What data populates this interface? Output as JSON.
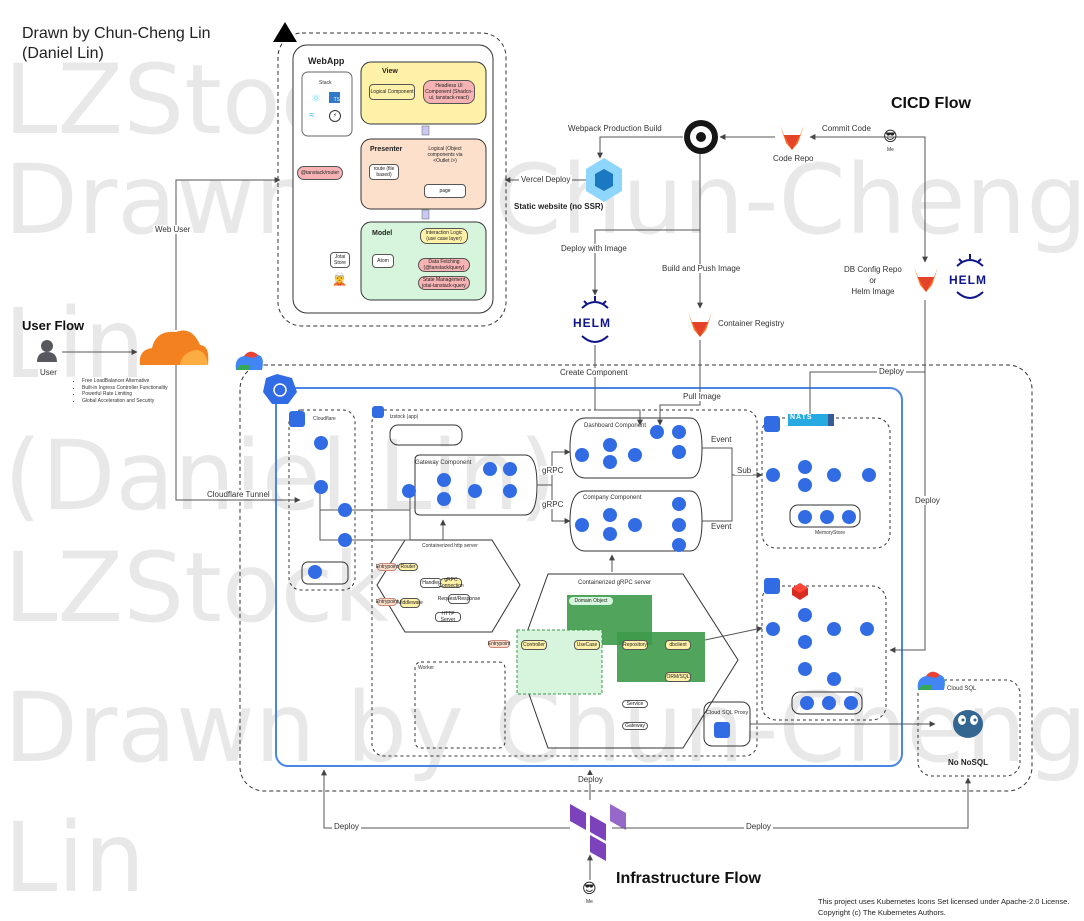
{
  "credit": {
    "line1": "Drawn by Chun-Cheng Lin",
    "line2": "(Daniel Lin)"
  },
  "watermark": {
    "lines": [
      "LZStock",
      "Drawn by Chun-Cheng",
      "Lin",
      "(Daniel Lin)",
      "LZStock",
      "Drawn by Chun-Cheng",
      "Lin"
    ]
  },
  "flows": {
    "user": "User Flow",
    "cicd": "CICD Flow",
    "infra": "Infrastructure Flow"
  },
  "user_flow": {
    "user_label": "User",
    "web_user": "Web User",
    "tunnel": "Cloudflare Tunnel",
    "features": [
      "Free LoadBalancer Alternative",
      "Built-in Ingress Controller Functionality",
      "Powerful Rate Limiting",
      "Global Acceleration and Security"
    ]
  },
  "webapp": {
    "title": "WebApp",
    "stack_label": "Stack",
    "ts_badge": "TS",
    "view": {
      "title": "View",
      "logical": "Logical Component",
      "headless": "Headless UI Component (Shadcn-ui, tanstack-react)"
    },
    "presenter": {
      "title": "Presenter",
      "router": "@tanstack/router",
      "route": "route (file based)",
      "logical": "Logical (Object components via <Outlet />)",
      "page": "page"
    },
    "model": {
      "title": "Model",
      "store": "Jotai Store",
      "atom": "Atom",
      "interaction": "Interaction Logic (use case layer)",
      "fetching": "Data Fetching (@tanstack/query)",
      "state": "State Management jotai-tanstack-query"
    }
  },
  "cicd": {
    "webpack": "Webpack Production Build",
    "commit": "Commit Code",
    "me": "Me",
    "code_repo": "Code Repo",
    "vercel": "Vercel Deploy",
    "static": "Static website (no SSR)",
    "deploy_image": "Deploy with Image",
    "build_push": "Build and Push Image",
    "db_config": "DB Config Repo\nor\nHelm Image",
    "registry": "Container Registry",
    "create_component": "Create Component",
    "pull_image": "Pull Image",
    "deploy1": "Deploy",
    "deploy2": "Deploy",
    "helm": "HELM"
  },
  "cluster": {
    "cloudflare_label": "Cloudflare",
    "lzstock_label": "lzstock (app)",
    "gateway": "Gateway Component",
    "dashboard": "Dashboard Component",
    "company": "Company Component",
    "grpc1": "gRPC",
    "grpc2": "gRPC",
    "event1": "Event",
    "event2": "Event",
    "sub": "Sub",
    "http_server": "Containerized http server",
    "grpc_server": "Containerized gRPC server",
    "worker": "Worker",
    "memory": "MemoryStore",
    "nats": "NATS",
    "cloud_sql_proxy": "Cloud SQL Proxy",
    "http_boxes": [
      "Router",
      "Handler",
      "Middleware",
      "gRPC Connection",
      "Request/Response",
      "HTTP Server"
    ],
    "grpc_boxes": [
      "Domain Object",
      "Controller",
      "UseCase",
      "Repository",
      "dbclient",
      "ORM/SQL",
      "Service",
      "Gateway"
    ],
    "entry_tags": [
      "Entrypoint",
      "Entrypoint",
      "Entrypoint"
    ]
  },
  "cloud_sql": {
    "title": "Cloud SQL",
    "no_nosql": "No NoSQL"
  },
  "infra": {
    "deploy_top": "Deploy",
    "deploy_left": "Deploy",
    "deploy_right": "Deploy",
    "me": "Me"
  },
  "license": {
    "line1": "This project uses Kubernetes Icons Set licensed under Apache-2.0 License.",
    "line2": "Copyright (c) The Kubernetes Authors."
  },
  "colors": {
    "k8s_blue": "#326ce5",
    "cloudflare_orange": "#f48120",
    "gitlab_orange": "#fc6d26",
    "view_yellow": "#fff2a8",
    "presenter_peach": "#fde0cc",
    "model_green": "#d6f5dc",
    "grpc_green": "#3e9a4a",
    "helm_navy": "#0f1689",
    "terraform_purple": "#7b42bc"
  }
}
